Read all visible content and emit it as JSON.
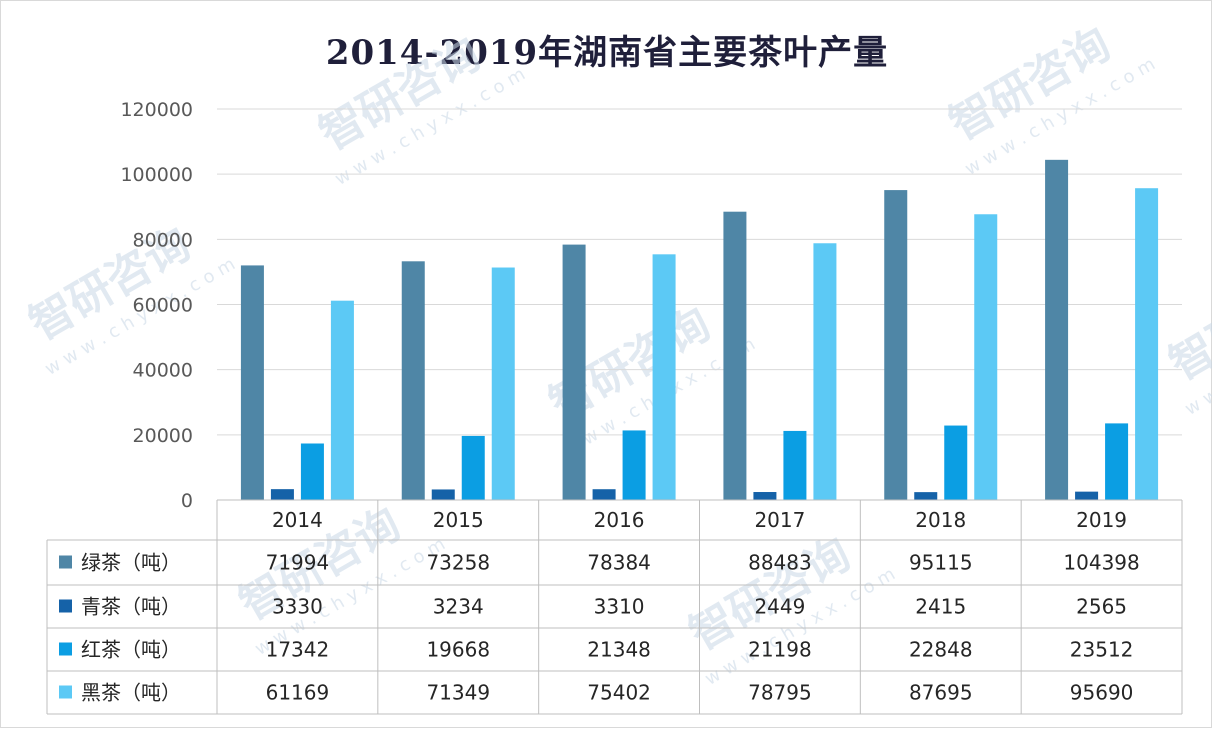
{
  "chart_data": {
    "type": "bar",
    "title": "2014-2019年湖南省主要茶叶产量",
    "categories": [
      "2014",
      "2015",
      "2016",
      "2017",
      "2018",
      "2019"
    ],
    "series": [
      {
        "name": "绿茶（吨）",
        "color": "#4f86a6",
        "values": [
          71994,
          73258,
          78384,
          88483,
          95115,
          104398
        ]
      },
      {
        "name": "青茶（吨）",
        "color": "#1562a8",
        "values": [
          3330,
          3234,
          3310,
          2449,
          2415,
          2565
        ]
      },
      {
        "name": "红茶（吨）",
        "color": "#0b9ee3",
        "values": [
          17342,
          19668,
          21348,
          21198,
          22848,
          23512
        ]
      },
      {
        "name": "黑茶（吨）",
        "color": "#5cc9f5",
        "values": [
          61169,
          71349,
          75402,
          78795,
          87695,
          95690
        ]
      }
    ],
    "ylim": [
      0,
      120000
    ],
    "yticks": [
      0,
      20000,
      40000,
      60000,
      80000,
      100000,
      120000
    ],
    "grid": true,
    "legend": "data-table-left",
    "data_table": true
  },
  "watermark": {
    "brand": "智研咨询",
    "url": "w w w . c h y x x . c o m"
  }
}
